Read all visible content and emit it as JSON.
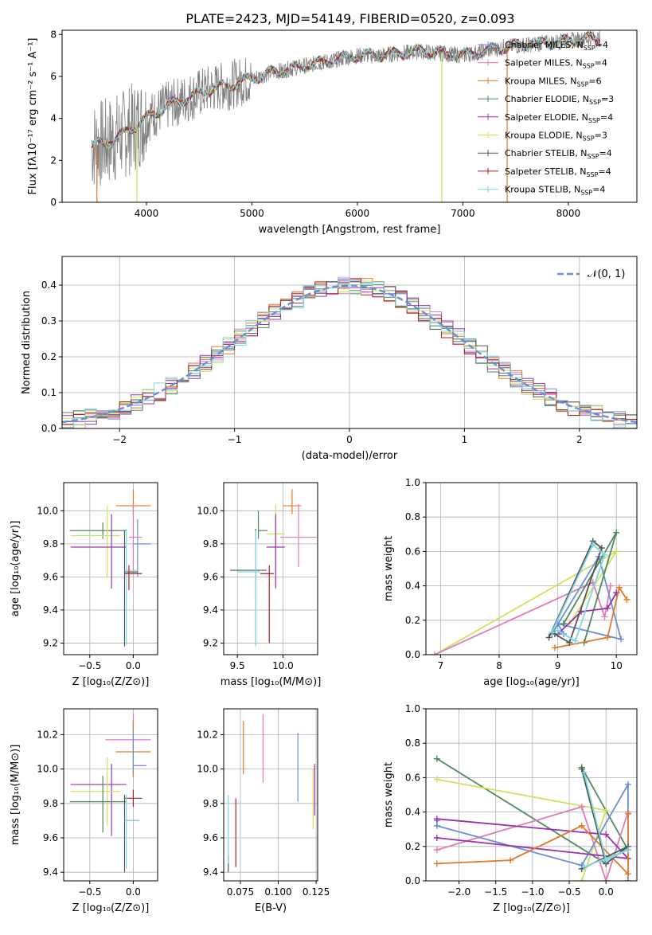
{
  "title": "PLATE=2423, MJD=54149, FIBERID=0520, z=0.093",
  "colors": {
    "Chabrier MILES": "#6a8fd8",
    "Salpeter MILES": "#e07ab8",
    "Kroupa MILES": "#e27a2a",
    "Chabrier ELODIE": "#4e8a5c",
    "Salpeter ELODIE": "#9a30b0",
    "Kroupa ELODIE": "#cfe15a",
    "Chabrier STELIB": "#555555",
    "Salpeter STELIB": "#b02020",
    "Kroupa STELIB": "#7fd8e0"
  },
  "chart_data": [
    {
      "type": "line",
      "name": "spectrum",
      "xlabel": "wavelength [Angstrom, rest frame]",
      "ylabel": "Flux [fλ10⁻¹⁷ erg cm⁻² s⁻¹ A⁻¹]",
      "xlim": [
        3200,
        8650
      ],
      "ylim": [
        0,
        8.2
      ],
      "xticks": [
        4000,
        5000,
        6000,
        7000,
        8000
      ],
      "yticks": [
        0,
        2,
        4,
        6,
        8
      ],
      "grid": false,
      "legend_position": "right",
      "legend": [
        {
          "label": "Chabrier MILES, N",
          "sub": "SSP",
          "tail": "=4",
          "key": "Chabrier MILES"
        },
        {
          "label": "Salpeter MILES, N",
          "sub": "SSP",
          "tail": "=4",
          "key": "Salpeter MILES"
        },
        {
          "label": "Kroupa MILES, N",
          "sub": "SSP",
          "tail": "=6",
          "key": "Kroupa MILES"
        },
        {
          "label": "Chabrier ELODIE, N",
          "sub": "SSP",
          "tail": "=3",
          "key": "Chabrier ELODIE"
        },
        {
          "label": "Salpeter ELODIE, N",
          "sub": "SSP",
          "tail": "=4",
          "key": "Salpeter ELODIE"
        },
        {
          "label": "Kroupa ELODIE, N",
          "sub": "SSP",
          "tail": "=3",
          "key": "Kroupa ELODIE"
        },
        {
          "label": "Chabrier STELIB, N",
          "sub": "SSP",
          "tail": "=4",
          "key": "Chabrier STELIB"
        },
        {
          "label": "Salpeter STELIB, N",
          "sub": "SSP",
          "tail": "=4",
          "key": "Salpeter STELIB"
        },
        {
          "label": "Kroupa STELIB, N",
          "sub": "SSP",
          "tail": "=4",
          "key": "Kroupa STELIB"
        }
      ],
      "continuum_x": [
        3480,
        3600,
        3800,
        4000,
        4200,
        4400,
        4600,
        4800,
        5000,
        5200,
        5400,
        5600,
        5800,
        6000,
        6200,
        6400,
        6600,
        6800,
        7000,
        7200,
        7400,
        7600,
        7800,
        8000,
        8200,
        8300
      ],
      "continuum_y": [
        2.7,
        2.8,
        3.3,
        4.0,
        4.6,
        5.0,
        5.4,
        5.6,
        5.9,
        6.2,
        6.4,
        6.6,
        6.8,
        7.0,
        7.0,
        7.1,
        7.2,
        7.1,
        7.0,
        7.2,
        7.4,
        7.5,
        7.6,
        7.7,
        7.8,
        7.8
      ],
      "model_dips": [
        {
          "x": 3910,
          "key": "Kroupa ELODIE"
        },
        {
          "x": 6800,
          "key": "Kroupa ELODIE"
        },
        {
          "x": 7420,
          "key": "Kroupa MILES"
        },
        {
          "x": 3530,
          "key": "Kroupa MILES"
        }
      ]
    },
    {
      "type": "histogram",
      "name": "residuals",
      "xlabel": "(data-model)/error",
      "ylabel": "Normed distribution",
      "xlim": [
        -2.5,
        2.5
      ],
      "ylim": [
        0,
        0.48
      ],
      "xticks": [
        -2,
        -1,
        0,
        1,
        2
      ],
      "yticks": [
        0.0,
        0.1,
        0.2,
        0.3,
        0.4
      ],
      "grid": true,
      "bin_width": 0.1,
      "legend_position": "top-right",
      "legend": "𝒩(0, 1)",
      "gaussian": {
        "mean": 0,
        "sigma": 1
      }
    },
    {
      "type": "errorbar",
      "name": "age-vs-Z",
      "xlabel": "Z [log₁₀(Z/Z⊙)]",
      "ylabel": "age  [log₁₀(age/yr)]",
      "xlim": [
        -0.8,
        0.28
      ],
      "ylim": [
        9.13,
        10.17
      ],
      "xticks": [
        -0.5,
        0.0
      ],
      "yticks": [
        9.2,
        9.4,
        9.6,
        9.8,
        10.0
      ],
      "grid": true,
      "points": [
        {
          "key": "Chabrier ELODIE",
          "x": -0.35,
          "xerr": [
            0.38,
            0.27
          ],
          "y": 9.88,
          "yerr": [
            0.05,
            0.05
          ]
        },
        {
          "key": "Kroupa ELODIE",
          "x": -0.3,
          "xerr": [
            0.42,
            0.15
          ],
          "y": 9.85,
          "yerr": [
            0.25,
            0.18
          ]
        },
        {
          "key": "Salpeter ELODIE",
          "x": -0.25,
          "xerr": [
            0.47,
            0.17
          ],
          "y": 9.78,
          "yerr": [
            0.25,
            0.2
          ]
        },
        {
          "key": "Kroupa MILES",
          "x": 0.0,
          "xerr": [
            0.2,
            0.2
          ],
          "y": 10.03,
          "yerr": [
            0.05,
            0.1
          ]
        },
        {
          "key": "Chabrier MILES",
          "x": 0.05,
          "xerr": [
            0.05,
            0.15
          ],
          "y": 9.8,
          "yerr": [
            0.2,
            0.15
          ]
        },
        {
          "key": "Salpeter MILES",
          "x": 0.0,
          "xerr": [
            0.05,
            0.1
          ],
          "y": 9.84,
          "yerr": [
            0.2,
            0.2
          ]
        },
        {
          "key": "Chabrier STELIB",
          "x": -0.1,
          "xerr": [
            0.0,
            0.15
          ],
          "y": 9.63,
          "yerr": [
            0.45,
            0.25
          ]
        },
        {
          "key": "Kroupa STELIB",
          "x": -0.08,
          "xerr": [
            0.02,
            0.13
          ],
          "y": 9.64,
          "yerr": [
            0.45,
            0.25
          ]
        },
        {
          "key": "Salpeter STELIB",
          "x": -0.05,
          "xerr": [
            0.05,
            0.15
          ],
          "y": 9.62,
          "yerr": [
            0.1,
            0.05
          ]
        }
      ]
    },
    {
      "type": "errorbar",
      "name": "age-vs-mass",
      "xlabel": "mass [log₁₀(M/M⊙)]",
      "ylabel": "",
      "xlim": [
        9.35,
        10.38
      ],
      "ylim": [
        9.13,
        10.17
      ],
      "xticks": [
        9.5,
        10.0
      ],
      "yticks": [
        9.2,
        9.4,
        9.6,
        9.8,
        10.0
      ],
      "grid": true,
      "points": [
        {
          "key": "Chabrier ELODIE",
          "x": 9.73,
          "xerr": [
            0.0,
            0.1
          ],
          "y": 9.88,
          "yerr": [
            0.05,
            0.12
          ]
        },
        {
          "key": "Kroupa ELODIE",
          "x": 9.92,
          "xerr": [
            0.1,
            0.1
          ],
          "y": 9.86,
          "yerr": [
            0.25,
            0.18
          ]
        },
        {
          "key": "Salpeter ELODIE",
          "x": 9.92,
          "xerr": [
            0.1,
            0.1
          ],
          "y": 9.78,
          "yerr": [
            0.25,
            0.2
          ]
        },
        {
          "key": "Kroupa MILES",
          "x": 10.1,
          "xerr": [
            0.1,
            0.1
          ],
          "y": 10.03,
          "yerr": [
            0.05,
            0.1
          ]
        },
        {
          "key": "Salpeter MILES",
          "x": 10.17,
          "xerr": [
            0.2,
            0.2
          ],
          "y": 9.84,
          "yerr": [
            0.18,
            0.2
          ]
        },
        {
          "key": "Chabrier STELIB",
          "x": 9.7,
          "xerr": [
            0.28,
            0.12
          ],
          "y": 9.64,
          "yerr": [
            0.45,
            0.25
          ]
        },
        {
          "key": "Kroupa STELIB",
          "x": 9.7,
          "xerr": [
            0.2,
            0.05
          ],
          "y": 9.63,
          "yerr": [
            0.45,
            0.25
          ]
        },
        {
          "key": "Salpeter STELIB",
          "x": 9.85,
          "xerr": [
            0.1,
            0.05
          ],
          "y": 9.62,
          "yerr": [
            0.42,
            0.05
          ]
        }
      ]
    },
    {
      "type": "line",
      "name": "weight-vs-age",
      "xlabel": "age  [log₁₀(age/yr)]",
      "ylabel": "mass weight",
      "xlim": [
        6.75,
        10.35
      ],
      "ylim": [
        0,
        1.0
      ],
      "xticks": [
        7,
        8,
        9,
        10
      ],
      "yticks": [
        0.0,
        0.2,
        0.4,
        0.6,
        0.8,
        1.0
      ],
      "grid": true,
      "series": [
        {
          "key": "Kroupa ELODIE",
          "x": [
            6.9,
            10.0,
            9.2
          ],
          "y": [
            0.0,
            0.6,
            0.18
          ]
        },
        {
          "key": "Salpeter MILES",
          "x": [
            6.9,
            9.6,
            9.8,
            9.9
          ],
          "y": [
            0.0,
            0.42,
            0.22,
            0.4
          ]
        },
        {
          "key": "Chabrier MILES",
          "x": [
            8.9,
            9.7,
            10.08,
            9.0,
            9.1
          ],
          "y": [
            0.12,
            0.57,
            0.09,
            0.18,
            0.12
          ]
        },
        {
          "key": "Chabrier ELODIE",
          "x": [
            9.45,
            10.0,
            9.1
          ],
          "y": [
            0.07,
            0.71,
            0.18
          ]
        },
        {
          "key": "Salpeter ELODIE",
          "x": [
            9.0,
            9.4,
            9.85,
            10.0
          ],
          "y": [
            0.12,
            0.25,
            0.27,
            0.36
          ]
        },
        {
          "key": "Kroupa MILES",
          "x": [
            8.95,
            9.85,
            10.05,
            10.18
          ],
          "y": [
            0.04,
            0.1,
            0.39,
            0.32
          ]
        },
        {
          "key": "Chabrier STELIB",
          "x": [
            8.85,
            9.6,
            9.75,
            9.2,
            8.95
          ],
          "y": [
            0.1,
            0.66,
            0.62,
            0.07,
            0.12
          ]
        },
        {
          "key": "Kroupa STELIB",
          "x": [
            8.9,
            9.6,
            9.8,
            9.3,
            9.0
          ],
          "y": [
            0.13,
            0.64,
            0.58,
            0.08,
            0.14
          ]
        }
      ]
    },
    {
      "type": "errorbar",
      "name": "mass-vs-Z",
      "xlabel": "Z [log₁₀(Z/Z⊙)]",
      "ylabel": "mass [log₁₀(M/M⊙)]",
      "xlim": [
        -0.8,
        0.28
      ],
      "ylim": [
        9.35,
        10.35
      ],
      "xticks": [
        -0.5,
        0.0
      ],
      "yticks": [
        9.4,
        9.6,
        9.8,
        10.0,
        10.2
      ],
      "grid": true,
      "points": [
        {
          "key": "Salpeter MILES",
          "x": 0.0,
          "xerr": [
            0.32,
            0.2
          ],
          "y": 10.17,
          "yerr": [
            0.2,
            0.15
          ]
        },
        {
          "key": "Kroupa MILES",
          "x": 0.0,
          "xerr": [
            0.2,
            0.2
          ],
          "y": 10.1,
          "yerr": [
            0.15,
            0.18
          ]
        },
        {
          "key": "Chabrier MILES",
          "x": 0.0,
          "xerr": [
            0.0,
            0.15
          ],
          "y": 10.02,
          "yerr": [
            0.05,
            0.2
          ]
        },
        {
          "key": "Salpeter ELODIE",
          "x": -0.25,
          "xerr": [
            0.47,
            0.17
          ],
          "y": 9.91,
          "yerr": [
            0.3,
            0.12
          ]
        },
        {
          "key": "Kroupa ELODIE",
          "x": -0.3,
          "xerr": [
            0.42,
            0.15
          ],
          "y": 9.87,
          "yerr": [
            0.2,
            0.2
          ]
        },
        {
          "key": "Salpeter STELIB",
          "x": 0.0,
          "xerr": [
            0.1,
            0.1
          ],
          "y": 9.83,
          "yerr": [
            0.05,
            0.05
          ]
        },
        {
          "key": "Chabrier ELODIE",
          "x": -0.35,
          "xerr": [
            0.38,
            0.27
          ],
          "y": 9.81,
          "yerr": [
            0.18,
            0.15
          ]
        },
        {
          "key": "Chabrier STELIB",
          "x": -0.1,
          "xerr": [
            0.0,
            0.17
          ],
          "y": 9.7,
          "yerr": [
            0.3,
            0.15
          ]
        },
        {
          "key": "Kroupa STELIB",
          "x": -0.08,
          "xerr": [
            0.02,
            0.15
          ],
          "y": 9.7,
          "yerr": [
            0.28,
            0.15
          ]
        }
      ]
    },
    {
      "type": "errorbar",
      "name": "mass-vs-EBV",
      "xlabel": "E(B-V)",
      "ylabel": "",
      "xlim": [
        0.064,
        0.126
      ],
      "ylim": [
        9.35,
        10.35
      ],
      "xticks": [
        0.075,
        0.1,
        0.125
      ],
      "tick_labels": [
        "0.075",
        "0.100",
        "0.125"
      ],
      "yticks": [
        9.4,
        9.6,
        9.8,
        10.0,
        10.2
      ],
      "grid": true,
      "points": [
        {
          "key": "Chabrier STELIB",
          "x": 0.067,
          "y": 9.5,
          "yerr": [
            0.1,
            0.0
          ]
        },
        {
          "key": "Kroupa STELIB",
          "x": 0.067,
          "y": 9.7,
          "yerr": [
            0.25,
            0.15
          ]
        },
        {
          "key": "Salpeter STELIB",
          "x": 0.072,
          "y": 9.65,
          "yerr": [
            0.22,
            0.18
          ]
        },
        {
          "key": "Kroupa MILES",
          "x": 0.077,
          "y": 10.12,
          "yerr": [
            0.15,
            0.16
          ]
        },
        {
          "key": "Salpeter MILES",
          "x": 0.09,
          "y": 10.12,
          "yerr": [
            0.2,
            0.2
          ]
        },
        {
          "key": "Chabrier MILES",
          "x": 0.113,
          "y": 10.01,
          "yerr": [
            0.2,
            0.2
          ]
        },
        {
          "key": "Kroupa ELODIE",
          "x": 0.123,
          "y": 9.85,
          "yerr": [
            0.2,
            0.15
          ]
        },
        {
          "key": "Salpeter ELODIE",
          "x": 0.124,
          "y": 9.93,
          "yerr": [
            0.2,
            0.1
          ]
        }
      ]
    },
    {
      "type": "line",
      "name": "weight-vs-Z",
      "xlabel": "Z [log₁₀(Z/Z⊙)]",
      "ylabel": "mass weight",
      "xlim": [
        -2.45,
        0.42
      ],
      "ylim": [
        0,
        1.0
      ],
      "xticks": [
        -2.0,
        -1.5,
        -1.0,
        -0.5,
        0.0
      ],
      "tick_labels": [
        "−2.0",
        "−1.5",
        "−1.0",
        "−0.5",
        "0.0"
      ],
      "yticks": [
        0.0,
        0.2,
        0.4,
        0.6,
        0.8,
        1.0
      ],
      "grid": true,
      "series": [
        {
          "key": "Chabrier ELODIE",
          "x": [
            -2.3,
            0.0,
            -0.33,
            0.3
          ],
          "y": [
            0.71,
            0.1,
            0.66,
            0.18
          ]
        },
        {
          "key": "Kroupa ELODIE",
          "x": [
            -2.3,
            0.0,
            -0.33
          ],
          "y": [
            0.59,
            0.41,
            0.0
          ]
        },
        {
          "key": "Salpeter MILES",
          "x": [
            -2.3,
            -0.33,
            0.0,
            0.3
          ],
          "y": [
            0.18,
            0.43,
            0.0,
            0.4
          ]
        },
        {
          "key": "Chabrier MILES",
          "x": [
            -2.3,
            -2.3,
            -0.33,
            0.3,
            0.3
          ],
          "y": [
            0.35,
            0.32,
            0.09,
            0.56,
            0.0
          ]
        },
        {
          "key": "Salpeter ELODIE",
          "x": [
            -2.3,
            0.0,
            0.3,
            -2.3
          ],
          "y": [
            0.36,
            0.27,
            0.13,
            0.25
          ]
        },
        {
          "key": "Kroupa MILES",
          "x": [
            -2.3,
            -1.3,
            -0.33,
            0.3,
            0.3
          ],
          "y": [
            0.1,
            0.12,
            0.32,
            0.04,
            0.39
          ]
        },
        {
          "key": "Chabrier STELIB",
          "x": [
            -0.33,
            0.0,
            0.3,
            -0.33
          ],
          "y": [
            0.65,
            0.1,
            0.2,
            0.07
          ]
        },
        {
          "key": "Kroupa STELIB",
          "x": [
            -0.3,
            0.0,
            0.3,
            -0.3
          ],
          "y": [
            0.63,
            0.12,
            0.18,
            0.08
          ]
        }
      ]
    }
  ]
}
